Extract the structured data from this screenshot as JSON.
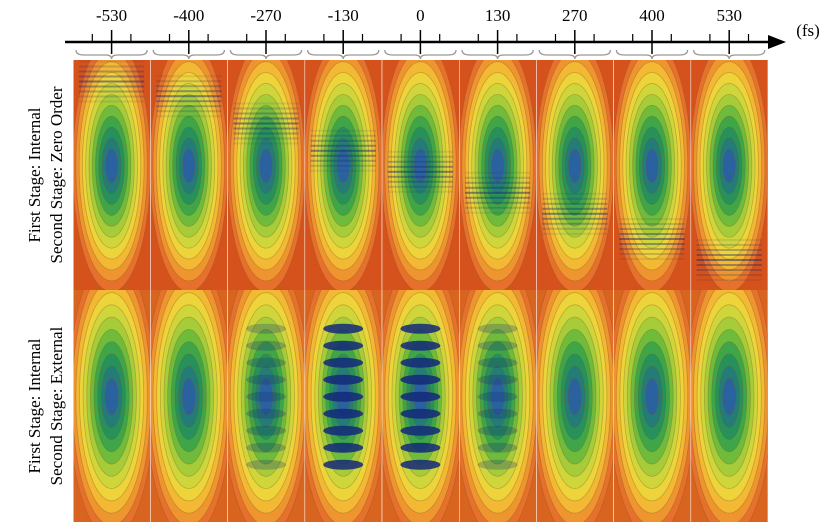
{
  "axis": {
    "ticks": [
      -530,
      -400,
      -270,
      -130,
      0,
      130,
      270,
      400,
      530
    ],
    "unit": "(fs)"
  },
  "rows": [
    {
      "line1": "First Stage: Internal",
      "line2": "Second Stage: Zero Order"
    },
    {
      "line1": "First Stage: Internal",
      "line2": "Second Stage: External"
    }
  ]
}
